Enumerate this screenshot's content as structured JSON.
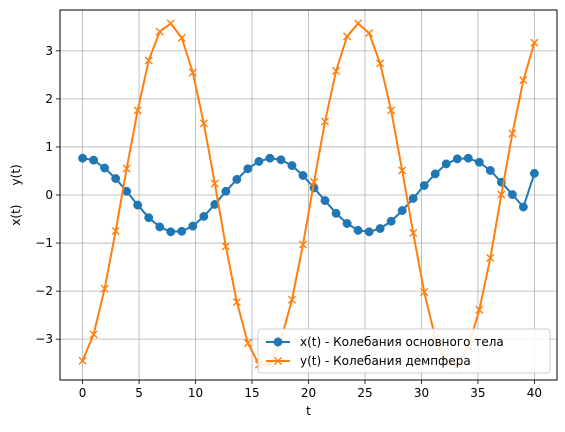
{
  "chart_data": {
    "type": "line",
    "title": "",
    "xlabel": "t",
    "ylabel": "x(t)     y(t)",
    "xlim": [
      -2,
      42
    ],
    "ylim": [
      -3.85,
      3.85
    ],
    "xticks": [
      0,
      5,
      10,
      15,
      20,
      25,
      30,
      35,
      40
    ],
    "yticks": [
      -3,
      -2,
      -1,
      0,
      1,
      2,
      3
    ],
    "grid": true,
    "legend_position": "lower-right",
    "x": [
      0,
      0.976,
      1.951,
      2.927,
      3.902,
      4.878,
      5.854,
      6.829,
      7.805,
      8.78,
      9.756,
      10.732,
      11.707,
      12.683,
      13.659,
      14.634,
      15.61,
      16.585,
      17.561,
      18.537,
      19.512,
      20.488,
      21.463,
      22.439,
      23.415,
      24.39,
      25.366,
      26.341,
      27.317,
      28.293,
      29.268,
      30.244,
      31.22,
      32.195,
      33.171,
      34.146,
      35.122,
      36.098,
      37.073,
      38.049,
      39.024,
      40.0
    ],
    "series": [
      {
        "name": "x(t) - Колебания основного тела",
        "color": "#1f77b4",
        "marker": "circle",
        "values": [
          0.766,
          0.725,
          0.561,
          0.343,
          0.077,
          -0.21,
          -0.472,
          -0.664,
          -0.766,
          -0.755,
          -0.647,
          -0.446,
          -0.197,
          0.077,
          0.325,
          0.546,
          0.698,
          0.766,
          0.733,
          0.612,
          0.406,
          0.147,
          -0.116,
          -0.382,
          -0.593,
          -0.736,
          -0.766,
          -0.698,
          -0.546,
          -0.325,
          -0.071,
          0.197,
          0.438,
          0.647,
          0.752,
          0.766,
          0.681,
          0.51,
          0.266,
          0.01,
          -0.25,
          0.45
        ]
      },
      {
        "name": "y(t) - Колебания демпфера",
        "color": "#ff7f0e",
        "marker": "x",
        "values": [
          -3.45,
          -2.9,
          -1.95,
          -0.75,
          0.55,
          1.76,
          2.8,
          3.4,
          3.57,
          3.27,
          2.55,
          1.49,
          0.24,
          -1.07,
          -2.23,
          -3.08,
          -3.53,
          -3.51,
          -3.02,
          -2.18,
          -1.03,
          0.27,
          1.53,
          2.58,
          3.3,
          3.57,
          3.37,
          2.74,
          1.76,
          0.51,
          -0.79,
          -2.02,
          -2.97,
          -3.48,
          -3.55,
          -3.16,
          -2.39,
          -1.31,
          0.01,
          1.28,
          2.39,
          3.17
        ]
      }
    ]
  }
}
